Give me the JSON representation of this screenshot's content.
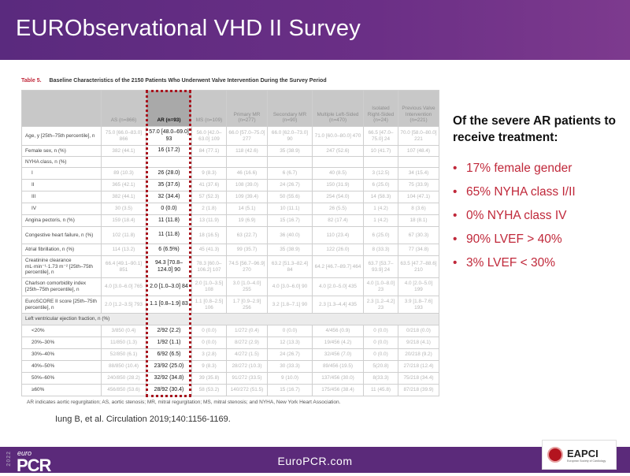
{
  "header": {
    "title": "EURObservational VHD II Survey"
  },
  "table": {
    "label": "Table 5.",
    "caption": "Baseline Characteristics of the 2150 Patients Who Underwent Valve Intervention During the Survey Period",
    "columns": [
      "",
      "AS (n=866)",
      "AR (n=93)",
      "MS (n=109)",
      "Primary MR (n=277)",
      "Secondary MR (n=90)",
      "Multiple Left-Sided (n=470)",
      "Isolated Right-Sided (n=24)",
      "Previous Valve Intervention (n=221)"
    ],
    "rows": [
      {
        "label": "Age, y [25th–75th percentile], n",
        "cells": [
          "75.0 [66.0–83.0] 866",
          "57.0 [48.0–69.0] 93",
          "56.0 [42.0–63.0] 109",
          "66.0 [57.0–75.0] 277",
          "66.0 [62.0–73.0] 90",
          "71.0 [60.0–80.0] 470",
          "66.5 [47.0–75.0] 24",
          "70.0 [58.0–80.0] 221"
        ]
      },
      {
        "label": "Female sex, n (%)",
        "cells": [
          "382 (44.1)",
          "16 (17.2)",
          "84 (77.1)",
          "118 (42.6)",
          "35 (38.9)",
          "247 (52.6)",
          "10 (41.7)",
          "107 (48.4)"
        ]
      },
      {
        "label": "NYHA class, n (%)",
        "cells": [
          "",
          "",
          "",
          "",
          "",
          "",
          "",
          ""
        ]
      },
      {
        "label": "I",
        "indent": true,
        "cells": [
          "89 (10.3)",
          "26 (28.0)",
          "9 (8.3)",
          "46 (16.6)",
          "6 (6.7)",
          "40 (8.5)",
          "3 (12.5)",
          "34 (15.4)"
        ]
      },
      {
        "label": "II",
        "indent": true,
        "cells": [
          "365 (42.1)",
          "35 (37.6)",
          "41 (37.6)",
          "108 (39.0)",
          "24 (26.7)",
          "150 (31.9)",
          "6 (25.0)",
          "75 (33.9)"
        ]
      },
      {
        "label": "III",
        "indent": true,
        "cells": [
          "382 (44.1)",
          "32 (34.4)",
          "57 (52.3)",
          "109 (39.4)",
          "50 (55.6)",
          "254 (54.0)",
          "14 (58.3)",
          "104 (47.1)"
        ]
      },
      {
        "label": "IV",
        "indent": true,
        "cells": [
          "30 (3.5)",
          "0 (0.0)",
          "2 (1.8)",
          "14 (5.1)",
          "10 (11.1)",
          "26 (5.5)",
          "1 (4.2)",
          "8 (3.6)"
        ]
      },
      {
        "label": "Angina pectoris, n (%)",
        "cells": [
          "159 (18.4)",
          "11 (11.8)",
          "13 (11.9)",
          "19 (6.9)",
          "15 (16.7)",
          "82 (17.4)",
          "1 (4.2)",
          "18 (8.1)"
        ]
      },
      {
        "label": "Congestive heart failure, n (%)",
        "cells": [
          "102 (11.8)",
          "11 (11.8)",
          "18 (16.5)",
          "63 (22.7)",
          "36 (40.0)",
          "110 (23.4)",
          "6 (25.0)",
          "67 (30.3)"
        ]
      },
      {
        "label": "Atrial fibrillation, n (%)",
        "cells": [
          "114 (13.2)",
          "6 (6.5%)",
          "45 (41.3)",
          "99 (35.7)",
          "35 (38.9)",
          "122 (26.0)",
          "8 (33.3)",
          "77 (34.8)"
        ]
      },
      {
        "label": "Creatinine clearance mL·min⁻¹·1.73 m⁻² [25th–75th percentile], n",
        "cells": [
          "66.4 [49.1–90.1] 851",
          "94.3 [70.8–124.0] 90",
          "78.3 [60.0–106.2] 107",
          "74.5 [56.7–96.9] 270",
          "63.2 [51.3–82.4] 84",
          "64.2 [46.7–89.7] 464",
          "63.7 [53.7–93.9] 24",
          "63.5 [47.7–88.6] 210"
        ]
      },
      {
        "label": "Charlson comorbidity index [25th–75th percentile], n",
        "cells": [
          "4.0 [3.0–6.0] 765",
          "2.0 [1.0–3.0] 84",
          "2.0 [1.0–3.5] 108",
          "3.0 [1.0–4.0] 255",
          "4.0 [3.0–6.0] 90",
          "4.0 [2.0–5.0] 435",
          "4.0 [1.0–8.0] 23",
          "4.0 [2.0–5.0] 199"
        ]
      },
      {
        "label": "EuroSCORE II score [25th–75th percentile], n",
        "cells": [
          "2.0 [1.2–3.5] 793",
          "1.1 [0.8–1.9] 83",
          "1.1 [0.8–2.5] 106",
          "1.7 [0.9–2.9] 256",
          "3.2 [1.8–7.1] 90",
          "2.3 [1.3–4.4] 435",
          "2.3 [1.2–4.2] 23",
          "3.9 [1.8–7.6] 193"
        ]
      },
      {
        "label": "Left ventricular ejection fraction, n (%)",
        "section": true,
        "cells": []
      },
      {
        "label": "<20%",
        "indent": true,
        "cells": [
          "3/850 (0.4)",
          "2/92 (2.2)",
          "0 (0.0)",
          "1/272 (0.4)",
          "0 (0.0)",
          "4/456 (0.9)",
          "0 (0.0)",
          "0/218 (0.0)"
        ]
      },
      {
        "label": "20%–30%",
        "indent": true,
        "cells": [
          "11/850 (1.3)",
          "1/92 (1.1)",
          "0 (0.0)",
          "8/272 (2.9)",
          "12 (13.3)",
          "19/456 (4.2)",
          "0 (0.0)",
          "9/218 (4.1)"
        ]
      },
      {
        "label": "30%–40%",
        "indent": true,
        "cells": [
          "52/850 (6.1)",
          "6/92 (6.5)",
          "3 (2.8)",
          "4/272 (1.5)",
          "24 (26.7)",
          "32/456 (7.0)",
          "0 (0.0)",
          "20/218 (9.2)"
        ]
      },
      {
        "label": "40%–50%",
        "indent": true,
        "cells": [
          "88/850 (10.4)",
          "23/92 (25.0)",
          "9 (8.3)",
          "28/272 (10.3)",
          "30 (33.3)",
          "89/456 (19.5)",
          "5(20.8)",
          "27/218 (12.4)"
        ]
      },
      {
        "label": "50%–60%",
        "indent": true,
        "cells": [
          "240/850 (28.2)",
          "32/92 (34.8)",
          "39 (35.8)",
          "91/272 (33.5)",
          "9 (10.0)",
          "137/456 (30.0)",
          "8(33.3)",
          "75/218 (34.4)"
        ]
      },
      {
        "label": "≥60%",
        "indent": true,
        "cells": [
          "456/850 (53.6)",
          "28/92 (30.4)",
          "58 (53.2)",
          "140/272 (51.5)",
          "15 (16.7)",
          "175/456 (38.4)",
          "11 (45.8)",
          "87/218 (39.9)"
        ]
      }
    ],
    "footnote": "AR indicates aortic regurgitation; AS, aortic stenosis; MR, mitral regurgitation; MS, mitral stenosis; and NYHA, New York Heart Association."
  },
  "citation": "Iung B, et al. Circulation 2019;140:1156-1169.",
  "summary": {
    "heading": "Of the severe AR patients to receive treatment:",
    "bullet": "•",
    "items": [
      "17% female gender",
      "65% NYHA class I/II",
      "0% NYHA class IV",
      "90% LVEF > 40%",
      "3%  LVEF < 30%"
    ]
  },
  "footer": {
    "logo_year": "2022",
    "logo_euro": "euro",
    "logo_pcr": "PCR",
    "site": "EuroPCR.com",
    "partner": "EAPCI",
    "partner_sub": "European Society of Cardiology"
  },
  "colors": {
    "purple": "#5b2a7a",
    "accent_red": "#c0283a"
  }
}
